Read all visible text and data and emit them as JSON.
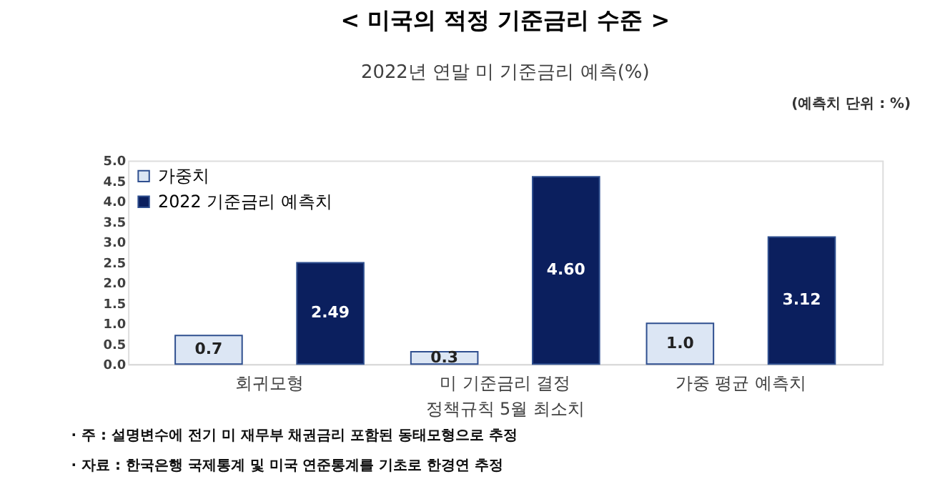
{
  "chart_data": {
    "type": "bar",
    "title": "< 미국의 적정 기준금리 수준 >",
    "subtitle": "2022년 연말 미 기준금리 예측(%)",
    "categories": [
      "회귀모형",
      "미 기준금리 결정\n정책규칙 5월 최소치",
      "가중 평균 예측치"
    ],
    "series": [
      {
        "name": "가중치",
        "color": "#dce6f4",
        "values": [
          0.7,
          0.3,
          1.0
        ],
        "value_labels": [
          "0.7",
          "0.3",
          "1.0"
        ]
      },
      {
        "name": "2022 기준금리 예측치",
        "color": "#0b1f5e",
        "values": [
          2.49,
          4.6,
          3.12
        ],
        "value_labels": [
          "2.49",
          "4.60",
          "3.12"
        ]
      }
    ],
    "ylim": [
      0,
      5
    ],
    "yticks": [
      {
        "value": 0,
        "label": "0.0"
      },
      {
        "value": 0.5,
        "label": "0.5"
      },
      {
        "value": 1,
        "label": "1.0"
      },
      {
        "value": 1.5,
        "label": "1.5"
      },
      {
        "value": 2,
        "label": "2.0"
      },
      {
        "value": 2.5,
        "label": "2.5"
      },
      {
        "value": 3,
        "label": "3.0"
      },
      {
        "value": 3.5,
        "label": "3.5"
      },
      {
        "value": 4,
        "label": "4.0"
      },
      {
        "value": 4.5,
        "label": "4.5"
      },
      {
        "value": 5,
        "label": "5.0"
      }
    ],
    "grid": false,
    "legend": "top left",
    "annotations": [
      "(예측치 단위 : %)",
      "· 주 : 설명변수에 전기 미 재무부 채권금리 포함된 동태모형으로 추정",
      "· 자료 : 한국은행 국제통계 및 미국 연준통계를 기초로 한경연 추정"
    ]
  }
}
